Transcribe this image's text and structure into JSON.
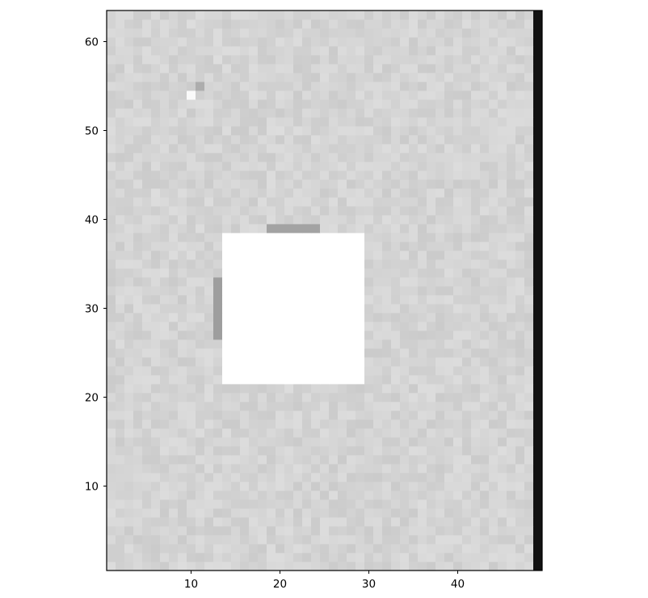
{
  "chart_data": {
    "type": "heatmap",
    "title": "",
    "xlabel": "",
    "ylabel": "",
    "xlim": [
      0.5,
      49.5
    ],
    "ylim": [
      0.5,
      63.5
    ],
    "n_cols": 49,
    "n_rows": 63,
    "colormap": "gray",
    "grid": false,
    "xticks": [
      10,
      20,
      30,
      40
    ],
    "yticks": [
      10,
      20,
      30,
      40,
      50,
      60
    ],
    "xtick_labels": [
      "10",
      "20",
      "30",
      "40"
    ],
    "ytick_labels": [
      "10",
      "20",
      "30",
      "40",
      "50",
      "60"
    ],
    "background_intensity": 0.83,
    "background_noise": 0.035,
    "features": [
      {
        "kind": "saturated-rectangle",
        "x": [
          14,
          29
        ],
        "y": [
          22,
          38
        ],
        "value": 1.0
      },
      {
        "kind": "saturated-cell",
        "x": 29,
        "y": [
          23,
          37
        ],
        "value": 1.0
      },
      {
        "kind": "dark-column",
        "x": 49,
        "y": [
          1,
          63
        ],
        "value": 0.07
      },
      {
        "kind": "dark-streak",
        "x": 13,
        "y": [
          27,
          33
        ],
        "value": 0.62
      },
      {
        "kind": "dark-streak",
        "x": [
          19,
          24
        ],
        "y": 39,
        "value": 0.64
      },
      {
        "kind": "bright-spot",
        "x": 10,
        "y": 54,
        "value": 0.98
      },
      {
        "kind": "dark-spot",
        "x": 11,
        "y": 55,
        "value": 0.68
      }
    ]
  }
}
